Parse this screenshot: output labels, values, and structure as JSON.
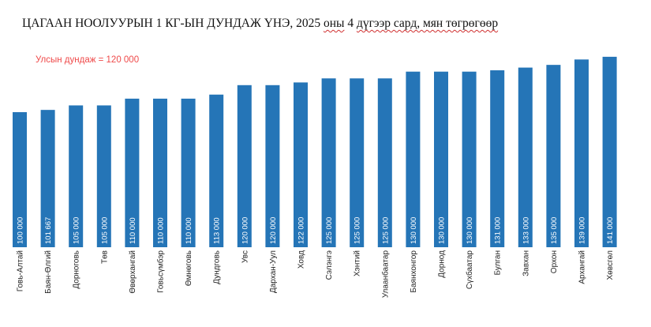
{
  "title_parts": {
    "plain": "ЦАГААН НООЛУУРЫН 1 КГ-ЫН ДУНДАЖ ҮНЭ, 2025 ",
    "flagged1": "оны",
    "mid": " 4 ",
    "flagged2": "дүгээр  сард, мян төгрөгөөр"
  },
  "chart_data": {
    "type": "bar",
    "title": "ЦАГААН НООЛУУРЫН 1 КГ-ЫН ДУНДАЖ ҮНЭ, 2025 оны 4 дүгээр  сард, мян төгрөгөөр",
    "annotation": "Улсын дундаж = 120 000",
    "categories": [
      "Говь-Алтай",
      "Баян-Өлгий",
      "Дорноговь",
      "Төв",
      "Өвөрхангай",
      "Говьсүмбэр",
      "Өмнөговь",
      "Дундговь",
      "Увс",
      "Дархан-Уул",
      "Ховд",
      "Сэлэнгэ",
      "Хэнтий",
      "Улаанбаатар",
      "Баянхонгор",
      "Дорнод",
      "Сүхбаатар",
      "Булган",
      "Завхан",
      "Орхон",
      "Архангай",
      "Хөвсгөл"
    ],
    "values": [
      100000,
      101667,
      105000,
      105000,
      110000,
      110000,
      110000,
      113000,
      120000,
      120000,
      122000,
      125000,
      125000,
      125000,
      130000,
      130000,
      130000,
      131000,
      133000,
      135000,
      139000,
      141000
    ],
    "value_labels": [
      "100 000",
      "101 667",
      "105 000",
      "105 000",
      "110 000",
      "110 000",
      "110 000",
      "113 000",
      "120 000",
      "120 000",
      "122 000",
      "125 000",
      "125 000",
      "125 000",
      "130 000",
      "130 000",
      "130 000",
      "131 000",
      "133 000",
      "135 000",
      "139 000",
      "141 000"
    ],
    "bar_color": "#2575b7",
    "grid": false,
    "axes_visible": false
  }
}
